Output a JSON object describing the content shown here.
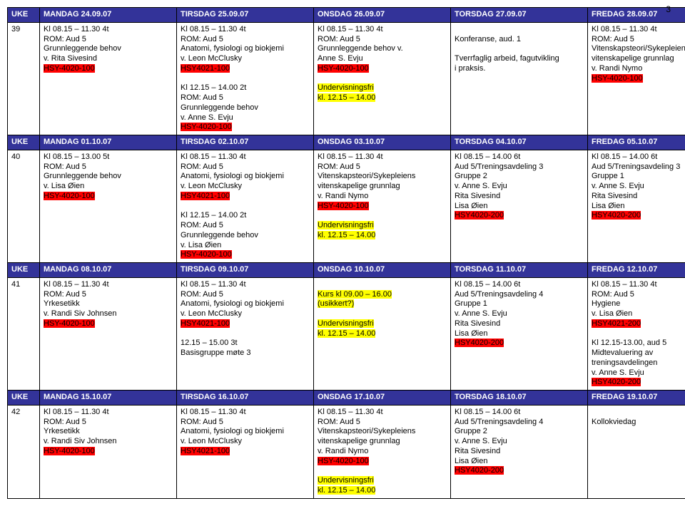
{
  "page": {
    "number": "3"
  },
  "colors": {
    "header_bg": "#333399",
    "header_fg": "#ffffff",
    "hl_yellow": "#ffff00",
    "hl_red": "#ff0000",
    "border": "#000000"
  },
  "weeks": [
    {
      "header": {
        "uke": "UKE",
        "mon": "MANDAG 24.09.07",
        "tue": "TIRSDAG 25.09.07",
        "wed": "ONSDAG 26.09.07",
        "thu": "TORSDAG 27.09.07",
        "fri": "FREDAG 28.09.07"
      },
      "num": "39",
      "mon": [
        {
          "t": "Kl 08.15 – 11.30 4t"
        },
        {
          "t": "ROM: Aud 5"
        },
        {
          "t": "Grunnleggende behov"
        },
        {
          "t": "v. Rita Sivesind"
        },
        {
          "t": "HSY-4020-100",
          "hl": "red"
        }
      ],
      "tue": [
        {
          "t": "Kl 08.15 – 11.30   4t"
        },
        {
          "t": "ROM: Aud 5"
        },
        {
          "t": "Anatomi, fysiologi og biokjemi"
        },
        {
          "t": "v. Leon McClusky"
        },
        {
          "t": "HSY4021-100",
          "hl": "red"
        },
        {
          "t": " "
        },
        {
          "t": "Kl 12.15 – 14.00 2t"
        },
        {
          "t": "ROM: Aud 5"
        },
        {
          "t": "Grunnleggende behov"
        },
        {
          "t": "v. Anne S. Evju"
        },
        {
          "t": "HSY-4020-100",
          "hl": "red"
        }
      ],
      "wed": [
        {
          "t": "Kl 08.15 – 11.30 4t"
        },
        {
          "t": "ROM: Aud 5"
        },
        {
          "t": "Grunnleggende behov v."
        },
        {
          "t": "Anne S. Evju"
        },
        {
          "t": " HSY-4020-100",
          "hl": "red"
        },
        {
          "t": " "
        },
        {
          "t": "Undervisningsfri",
          "hl": "yellow"
        },
        {
          "t": "kl. 12.15 – 14.00",
          "hl": "yellow"
        }
      ],
      "thu": [
        {
          "t": " "
        },
        {
          "t": "Konferanse, aud. 1"
        },
        {
          "t": " "
        },
        {
          "t": "Tverrfaglig arbeid, fagutvikling"
        },
        {
          "t": "i praksis."
        }
      ],
      "fri": [
        {
          "t": "Kl 08.15 – 11.30 4t"
        },
        {
          "t": "ROM: Aud 5"
        },
        {
          "t": "Vitenskapsteori/Sykepleiens"
        },
        {
          "t": "vitenskapelige grunnlag"
        },
        {
          "t": "v. Randi Nymo"
        },
        {
          "t": "HSY-4020-100",
          "hl": "red"
        }
      ]
    },
    {
      "header": {
        "uke": "UKE",
        "mon": "MANDAG 01.10.07",
        "tue": "TIRSDAG 02.10.07",
        "wed": "ONSDAG  03.10.07",
        "thu": "TORSDAG  04.10.07",
        "fri": "FREDAG  05.10.07"
      },
      "num": "40",
      "mon": [
        {
          "t": "Kl 08.15 – 13.00   5t"
        },
        {
          "t": "ROM: Aud 5"
        },
        {
          "t": "Grunnleggende behov"
        },
        {
          "t": "v. Lisa Øien"
        },
        {
          "t": "HSY-4020-100",
          "hl": "red"
        }
      ],
      "tue": [
        {
          "t": "Kl 08.15 – 11.30  4t"
        },
        {
          "t": "ROM: Aud 5"
        },
        {
          "t": "Anatomi, fysiologi og biokjemi"
        },
        {
          "t": "v. Leon McClusky"
        },
        {
          "t": "HSY4021-100",
          "hl": "red"
        },
        {
          "t": " "
        },
        {
          "t": "Kl 12.15 – 14.00   2t"
        },
        {
          "t": "ROM: Aud 5"
        },
        {
          "t": "Grunnleggende behov"
        },
        {
          "t": "v. Lisa Øien"
        },
        {
          "t": "HSY-4020-100",
          "hl": "red"
        }
      ],
      "wed": [
        {
          "t": "Kl 08.15 – 11.30  4t"
        },
        {
          "t": "ROM: Aud 5"
        },
        {
          "t": "Vitenskapsteori/Sykepleiens"
        },
        {
          "t": "vitenskapelige grunnlag"
        },
        {
          "t": "v. Randi Nymo"
        },
        {
          "t": "HSY-4020-100",
          "hl": "red"
        },
        {
          "t": " "
        },
        {
          "t": "Undervisningsfri",
          "hl": "yellow"
        },
        {
          "t": "kl. 12.15 – 14.00",
          "hl": "yellow"
        }
      ],
      "thu": [
        {
          "t": "Kl 08.15 – 14.00   6t"
        },
        {
          "t": "Aud 5/Treningsavdeling 3"
        },
        {
          "t": "Gruppe 2"
        },
        {
          "t": "v. Anne S. Evju"
        },
        {
          "t": "Rita Sivesind"
        },
        {
          "t": "Lisa Øien"
        },
        {
          "t": "HSY4020-200",
          "hl": "red"
        }
      ],
      "fri": [
        {
          "t": "Kl 08.15 – 14.00   6t"
        },
        {
          "t": "Aud 5/Treningsavdeling 3"
        },
        {
          "t": "Gruppe 1"
        },
        {
          "t": "v. Anne S. Evju"
        },
        {
          "t": "Rita Sivesind"
        },
        {
          "t": "Lisa Øien"
        },
        {
          "t": "HSY4020-200",
          "hl": "red"
        }
      ]
    },
    {
      "header": {
        "uke": "UKE",
        "mon": "MANDAG  08.10.07",
        "tue": "TIRSDAG  09.10.07",
        "wed": "ONSDAG  10.10.07",
        "thu": "TORSDAG  11.10.07",
        "fri": "FREDAG  12.10.07"
      },
      "num": "41",
      "mon": [
        {
          "t": "Kl 08.15 – 11.30 4t"
        },
        {
          "t": "ROM: Aud 5"
        },
        {
          "t": "Yrkesetikk"
        },
        {
          "t": "v. Randi Siv Johnsen"
        },
        {
          "t": "HSY-4020-100",
          "hl": "red"
        }
      ],
      "tue": [
        {
          "t": "Kl 08.15 – 11.30   4t"
        },
        {
          "t": "ROM: Aud 5"
        },
        {
          "t": "Anatomi, fysiologi og biokjemi"
        },
        {
          "t": "v. Leon McClusky"
        },
        {
          "t": "HSY4021-100",
          "hl": "red"
        },
        {
          "t": " "
        },
        {
          "t": "12.15 – 15.00  3t"
        },
        {
          "t": "Basisgruppe møte 3"
        }
      ],
      "wed": [
        {
          "t": " "
        },
        {
          "t": "Kurs kl 09.00 – 16.00",
          "hl": "yellow"
        },
        {
          "t": "(usikkert?)",
          "hl": "yellow"
        },
        {
          "t": " "
        },
        {
          "t": "Undervisningsfri",
          "hl": "yellow"
        },
        {
          "t": "kl. 12.15 – 14.00",
          "hl": "yellow"
        }
      ],
      "thu": [
        {
          "t": "Kl 08.15 – 14.00   6t"
        },
        {
          "t": "Aud 5/Treningsavdeling 4"
        },
        {
          "t": "Gruppe 1"
        },
        {
          "t": "v. Anne S. Evju"
        },
        {
          "t": "Rita Sivesind"
        },
        {
          "t": "Lisa Øien"
        },
        {
          "t": "HSY4020-200",
          "hl": "red"
        }
      ],
      "fri": [
        {
          "t": "Kl 08.15 – 11.30   4t"
        },
        {
          "t": "ROM: Aud 5"
        },
        {
          "t": "Hygiene"
        },
        {
          "t": "v. Lisa Øien"
        },
        {
          "t": "HSY4021-200",
          "hl": "red"
        },
        {
          "t": " "
        },
        {
          "t": "Kl 12.15-13.00, aud 5"
        },
        {
          "t": "Midtevaluering av"
        },
        {
          "t": "treningsavdelingen"
        },
        {
          "t": "v. Anne S. Evju"
        },
        {
          "t": "HSY4020-200",
          "hl": "red"
        }
      ]
    },
    {
      "header": {
        "uke": "UKE",
        "mon": "MANDAG  15.10.07",
        "tue": "TIRSDAG  16.10.07",
        "wed": "ONSDAG  17.10.07",
        "thu": "TORSDAG  18.10.07",
        "fri": "FREDAG  19.10.07"
      },
      "num": "42",
      "mon": [
        {
          "t": "Kl 08.15 – 11.30 4t"
        },
        {
          "t": "ROM: Aud 5"
        },
        {
          "t": "Yrkesetikk"
        },
        {
          "t": "v. Randi Siv Johnsen"
        },
        {
          "t": "HSY-4020-100",
          "hl": "red"
        }
      ],
      "tue": [
        {
          "t": "Kl 08.15 – 11.30   4t"
        },
        {
          "t": "ROM: Aud 5"
        },
        {
          "t": "Anatomi, fysiologi og biokjemi"
        },
        {
          "t": "v. Leon McClusky"
        },
        {
          "t": "HSY4021-100",
          "hl": "red"
        }
      ],
      "wed": [
        {
          "t": "Kl 08.15 – 11.30 4t"
        },
        {
          "t": "ROM: Aud 5"
        },
        {
          "t": "Vitenskapsteori/Sykepleiens"
        },
        {
          "t": "vitenskapelige grunnlag"
        },
        {
          "t": "v. Randi Nymo"
        },
        {
          "t": "HSY-4020-100",
          "hl": "red"
        },
        {
          "t": " "
        },
        {
          "t": "Undervisningsfri",
          "hl": "yellow"
        },
        {
          "t": "kl. 12.15 – 14.00",
          "hl": "yellow"
        }
      ],
      "thu": [
        {
          "t": "Kl 08.15 – 14.00   6t"
        },
        {
          "t": "Aud 5/Treningsavdeling 4"
        },
        {
          "t": "Gruppe 2"
        },
        {
          "t": "v. Anne S. Evju"
        },
        {
          "t": "Rita Sivesind"
        },
        {
          "t": "Lisa Øien"
        },
        {
          "t": "HSY4020-200",
          "hl": "red"
        }
      ],
      "fri": [
        {
          "t": " "
        },
        {
          "t": "Kollokviedag"
        }
      ]
    }
  ]
}
